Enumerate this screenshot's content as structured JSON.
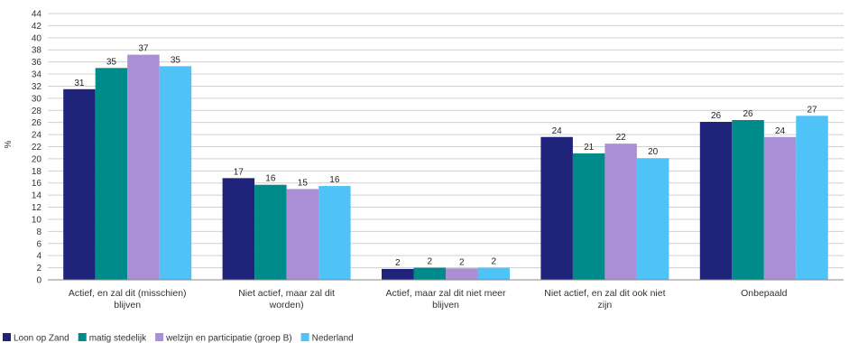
{
  "chart_data": {
    "type": "bar",
    "ylabel": "%",
    "ylim": [
      0,
      44
    ],
    "ytick_step": 2,
    "grid": true,
    "legend_position": "bottom-left",
    "categories": [
      [
        "Actief, en zal dit (misschien)",
        "blijven"
      ],
      [
        "Niet actief, maar zal dit",
        "worden)"
      ],
      [
        "Actief, maar zal dit niet meer",
        "blijven"
      ],
      [
        "Niet actief, en zal dit ook niet",
        "zijn"
      ],
      [
        "Onbepaald"
      ]
    ],
    "series": [
      {
        "name": "Loon op Zand",
        "color": "#1f237a",
        "values": [
          31,
          17,
          2,
          24,
          26
        ],
        "heights": [
          31.5,
          16.8,
          1.8,
          23.6,
          26.1
        ]
      },
      {
        "name": "matig stedelijk",
        "color": "#008b8b",
        "values": [
          35,
          16,
          2,
          21,
          26
        ],
        "heights": [
          35.0,
          15.7,
          2.0,
          20.9,
          26.4
        ]
      },
      {
        "name": "welzijn en participatie (groep B)",
        "color": "#ab8fd6",
        "values": [
          37,
          15,
          2,
          22,
          24
        ],
        "heights": [
          37.2,
          15.0,
          1.9,
          22.5,
          23.6
        ]
      },
      {
        "name": "Nederland",
        "color": "#4fc3f7",
        "values": [
          35,
          16,
          2,
          20,
          27
        ],
        "heights": [
          35.3,
          15.5,
          2.0,
          20.1,
          27.1
        ]
      }
    ]
  }
}
